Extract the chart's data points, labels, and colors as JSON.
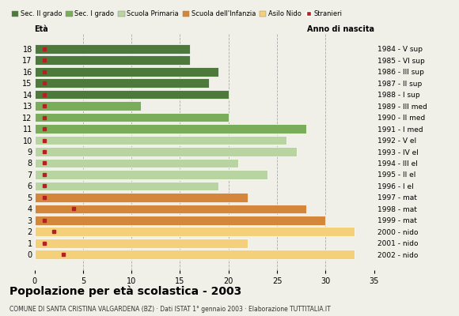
{
  "ages": [
    18,
    17,
    16,
    15,
    14,
    13,
    12,
    11,
    10,
    9,
    8,
    7,
    6,
    5,
    4,
    3,
    2,
    1,
    0
  ],
  "years": [
    "1984 - V sup",
    "1985 - VI sup",
    "1986 - III sup",
    "1987 - II sup",
    "1988 - I sup",
    "1989 - III med",
    "1990 - II med",
    "1991 - I med",
    "1992 - V el",
    "1993 - IV el",
    "1994 - III el",
    "1995 - II el",
    "1996 - I el",
    "1997 - mat",
    "1998 - mat",
    "1999 - mat",
    "2000 - nido",
    "2001 - nido",
    "2002 - nido"
  ],
  "values": [
    16,
    16,
    19,
    18,
    20,
    11,
    20,
    28,
    26,
    27,
    21,
    24,
    19,
    22,
    28,
    30,
    33,
    22,
    33
  ],
  "stranieri": [
    1,
    1,
    1,
    1,
    1,
    1,
    1,
    1,
    1,
    1,
    1,
    1,
    1,
    1,
    4,
    1,
    2,
    1,
    3
  ],
  "categories": [
    "Sec. II grado",
    "Sec. I grado",
    "Scuola Primaria",
    "Scuola dell'Infanzia",
    "Asilo Nido",
    "Stranieri"
  ],
  "cat_colors": [
    "#4d7a3a",
    "#7aad5a",
    "#b8d4a0",
    "#d4873a",
    "#f5d07a",
    "#b22222"
  ],
  "bar_colors_per_age": [
    "#4d7a3a",
    "#4d7a3a",
    "#4d7a3a",
    "#4d7a3a",
    "#4d7a3a",
    "#7aad5a",
    "#7aad5a",
    "#7aad5a",
    "#b8d4a0",
    "#b8d4a0",
    "#b8d4a0",
    "#b8d4a0",
    "#b8d4a0",
    "#d4873a",
    "#d4873a",
    "#d4873a",
    "#f5d07a",
    "#f5d07a",
    "#f5d07a"
  ],
  "title": "Popolazione per età scolastica - 2003",
  "subtitle": "COMUNE DI SANTA CRISTINA VALGARDENA (BZ) · Dati ISTAT 1° gennaio 2003 · Elaborazione TUTTITALIA.IT",
  "xlabel_left": "Età",
  "xlabel_right": "Anno di nascita",
  "xlim": [
    0,
    35
  ],
  "xticks": [
    0,
    5,
    10,
    15,
    20,
    25,
    30,
    35
  ],
  "background_color": "#f0f0e8",
  "grid_color": "#aaaaaa"
}
